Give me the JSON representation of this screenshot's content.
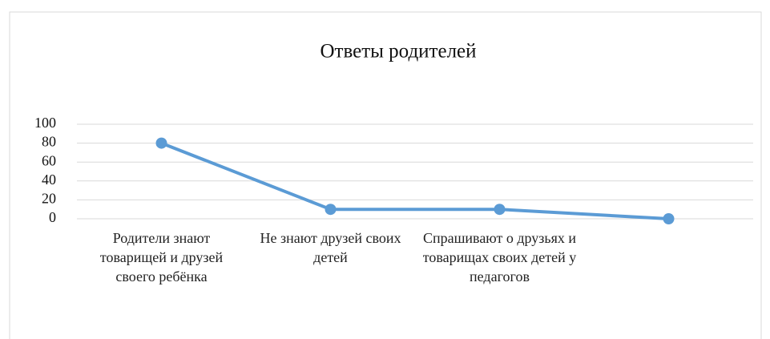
{
  "chart_data": {
    "type": "line",
    "title": "Ответы родителей",
    "categories": [
      "Родители знают товарищей и друзей своего ребёнка",
      "Не знают друзей своих детей",
      "Спрашивают о друзьях и товарищах своих детей у педагогов",
      null
    ],
    "values": [
      80,
      10,
      10,
      0
    ],
    "color": "#5b9bd5",
    "ylim": [
      0,
      100
    ],
    "yticks": [
      0,
      20,
      40,
      60,
      80,
      100
    ],
    "grid": true
  }
}
